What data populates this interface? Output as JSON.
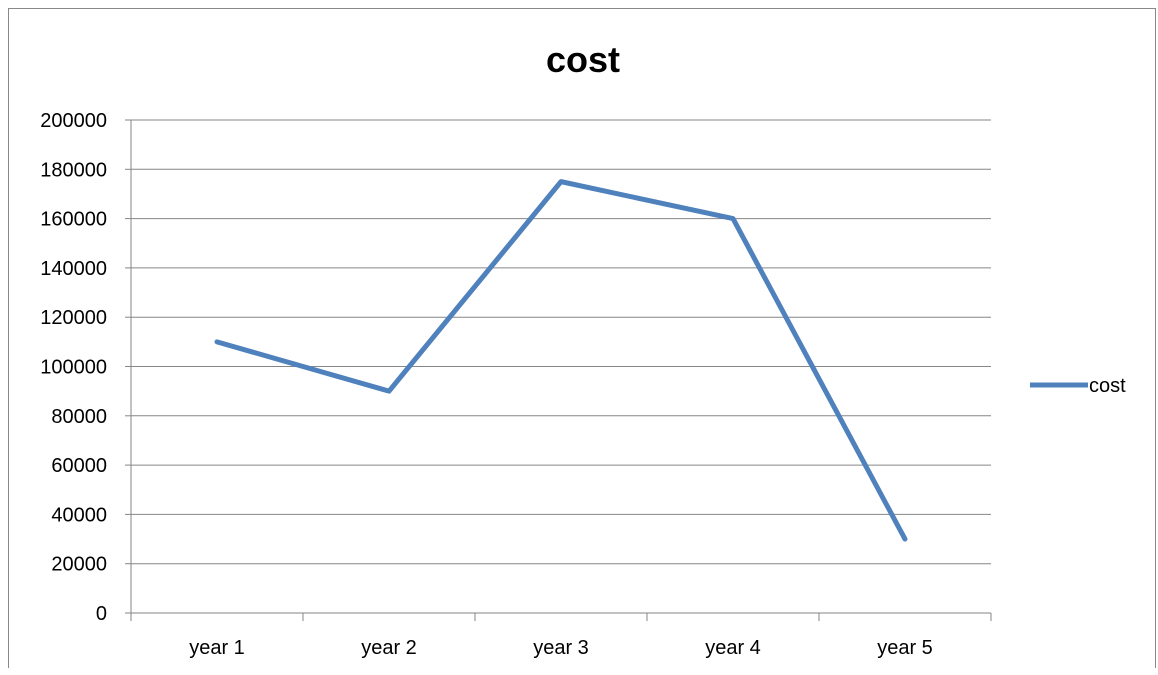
{
  "chart_data": {
    "type": "line",
    "title": "cost",
    "xlabel": "",
    "ylabel": "",
    "categories": [
      "year 1",
      "year 2",
      "year 3",
      "year 4",
      "year 5"
    ],
    "series": [
      {
        "name": "cost",
        "values": [
          110000,
          90000,
          175000,
          160000,
          30000
        ],
        "color": "#4F81BD"
      }
    ],
    "ylim": [
      0,
      200000
    ],
    "y_ticks": [
      "0",
      "20000",
      "40000",
      "60000",
      "80000",
      "100000",
      "120000",
      "140000",
      "160000",
      "180000",
      "200000"
    ],
    "grid": true,
    "legend_position": "right"
  },
  "colors": {
    "gridline": "#868686",
    "axis": "#868686",
    "series": "#4F81BD"
  }
}
